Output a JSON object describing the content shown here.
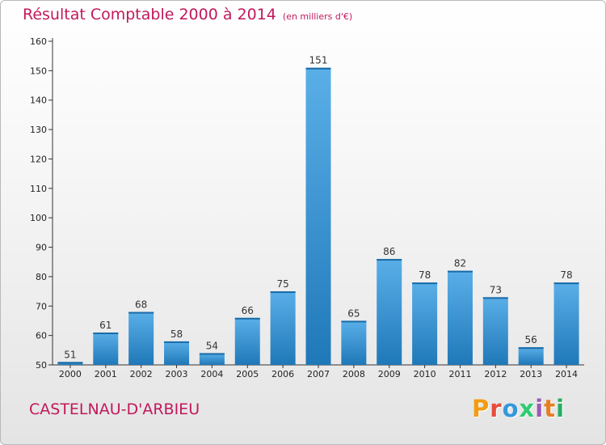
{
  "header": {
    "title": "Résultat Comptable 2000 à 2014",
    "unit": "(en milliers d'€)"
  },
  "footer": {
    "place": "CASTELNAU-D'ARBIEU",
    "logo": "Proxiti"
  },
  "colors": {
    "title": "#c2185b",
    "bar_top": "#5aafe8",
    "bar_bottom": "#1f78b8",
    "logo": [
      "#f39c12",
      "#e74c3c",
      "#3498db",
      "#2ecc71",
      "#9b59b6",
      "#e67e22",
      "#27ae60"
    ]
  },
  "chart_data": {
    "type": "bar",
    "title": "Résultat Comptable 2000 à 2014",
    "subtitle": "(en milliers d'€)",
    "xlabel": "",
    "ylabel": "",
    "categories": [
      "2000",
      "2001",
      "2002",
      "2003",
      "2004",
      "2005",
      "2006",
      "2007",
      "2008",
      "2009",
      "2010",
      "2011",
      "2012",
      "2013",
      "2014"
    ],
    "values": [
      51,
      61,
      68,
      58,
      54,
      66,
      75,
      151,
      65,
      86,
      78,
      82,
      73,
      56,
      78
    ],
    "ylim": [
      50,
      160
    ],
    "yticks": [
      50,
      60,
      70,
      80,
      90,
      100,
      110,
      120,
      130,
      140,
      150,
      160
    ],
    "grid": false,
    "legend": "none"
  }
}
